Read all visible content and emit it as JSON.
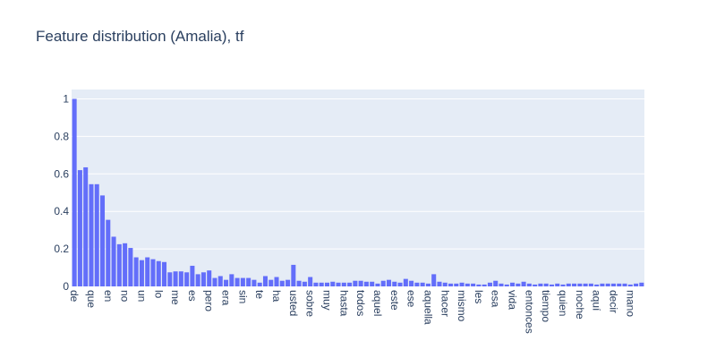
{
  "chart_data": {
    "type": "bar",
    "title": "Feature distribution (Amalia), tf",
    "xlabel": "",
    "ylabel": "",
    "ylim": [
      0,
      1.05
    ],
    "yticks": [
      0,
      0.2,
      0.4,
      0.6,
      0.8,
      1
    ],
    "ytick_labels": [
      "0",
      "0.2",
      "0.4",
      "0.6",
      "0.8",
      "1"
    ],
    "grid": true,
    "bar_color": "#636efa",
    "plot_bg": "#e5ecf6",
    "shown_categories": [
      "de",
      "que",
      "en",
      "no",
      "un",
      "lo",
      "me",
      "es",
      "pero",
      "era",
      "sin",
      "te",
      "ha",
      "usted",
      "sobre",
      "muy",
      "hasta",
      "todos",
      "aquel",
      "este",
      "ese",
      "aquella",
      "hacer",
      "mismo",
      "les",
      "esa",
      "vida",
      "entonces",
      "tiempo",
      "quien",
      "noche",
      "aquí",
      "decir",
      "mano"
    ],
    "values": [
      1.0,
      0.62,
      0.635,
      0.545,
      0.545,
      0.485,
      0.355,
      0.265,
      0.225,
      0.23,
      0.205,
      0.155,
      0.14,
      0.155,
      0.145,
      0.135,
      0.13,
      0.075,
      0.08,
      0.08,
      0.075,
      0.11,
      0.065,
      0.075,
      0.085,
      0.045,
      0.055,
      0.035,
      0.065,
      0.045,
      0.045,
      0.045,
      0.035,
      0.02,
      0.055,
      0.035,
      0.05,
      0.03,
      0.035,
      0.115,
      0.03,
      0.025,
      0.05,
      0.02,
      0.02,
      0.02,
      0.025,
      0.02,
      0.02,
      0.02,
      0.03,
      0.03,
      0.025,
      0.025,
      0.015,
      0.03,
      0.035,
      0.025,
      0.02,
      0.04,
      0.03,
      0.02,
      0.02,
      0.015,
      0.065,
      0.025,
      0.02,
      0.015,
      0.015,
      0.02,
      0.015,
      0.015,
      0.01,
      0.01,
      0.02,
      0.03,
      0.015,
      0.01,
      0.02,
      0.015,
      0.025,
      0.015,
      0.01,
      0.015,
      0.015,
      0.01,
      0.015,
      0.01,
      0.015,
      0.015,
      0.015,
      0.015,
      0.015,
      0.01,
      0.015,
      0.015,
      0.015,
      0.015,
      0.015,
      0.01,
      0.015,
      0.02
    ]
  }
}
